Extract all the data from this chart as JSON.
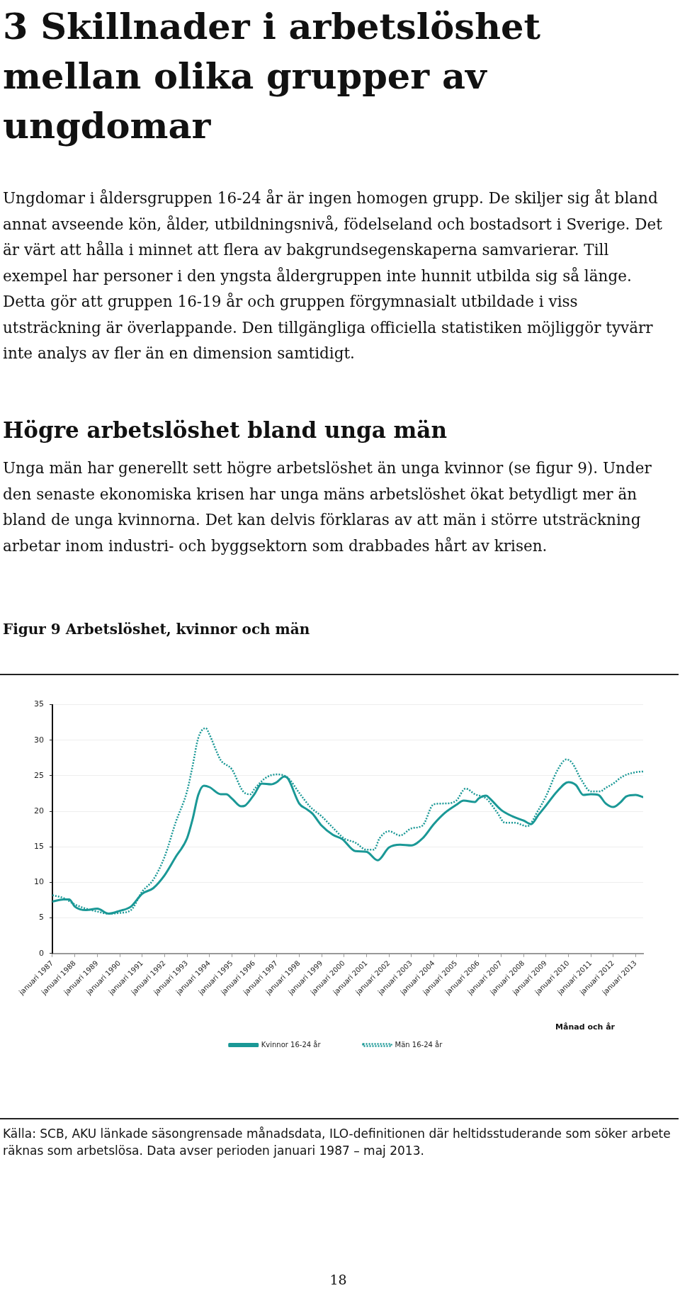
{
  "chart_data": {
    "type": "line",
    "title": "Figur 9 Arbetslöshet, kvinnor och män",
    "xlabel": "Månad och år",
    "annotations": [
      "3 Skillnader i arbetslöshet mellan olika grupper av ungdomar",
      "Ungdomar i åldersgruppen 16-24 år är ingen homogen grupp. De skiljer sig åt bland annat avseende kön, ålder, utbildningsnivå, födelseland och bostadsort i Sverige. Det är värt att hålla i minnet att flera av bakgrundsegenskaperna samvarierar. Till exempel har personer i den yngsta åldergruppen inte hunnit utbilda sig så länge. Detta gör att gruppen 16-19 år och gruppen förgymnasialt utbildade i viss utsträckning är överlappande. Den tillgängliga officiella statistiken möjliggör tyvärr inte analys av fler än en dimension samtidigt.",
      "Högre arbetslöshet bland unga män",
      "Unga män har generellt sett högre arbetslöshet än unga kvinnor (se figur 9). Under den senaste ekonomiska krisen har unga mäns arbetslöshet ökat betydligt mer än bland de unga kvinnorna. Det kan delvis förklaras av att män i större utsträckning arbetar inom industri- och byggsektorn som drabbades hårt av krisen.",
      "Källa: SCB, AKU länkade säsongrensade månadsdata, ILO-definitionen där heltidsstuderande som söker arbete räknas som arbetslösa. Data avser perioden januari 1987 – maj 2013.",
      "18"
    ],
    "series": [
      {
        "name": "Kvinnor 16-24 år",
        "color": "#1a9896",
        "line_style": "solid",
        "x": [
          "1987-01",
          "1987-07",
          "1987-10",
          "1988-01",
          "1988-07",
          "1989-01",
          "1989-07",
          "1990-01",
          "1990-07",
          "1991-01",
          "1991-07",
          "1992-01",
          "1992-07",
          "1993-01",
          "1993-04",
          "1993-07",
          "1993-10",
          "1994-01",
          "1994-07",
          "1994-10",
          "1995-01",
          "1995-06",
          "1995-08",
          "1996-01",
          "1996-05",
          "1996-10",
          "1997-01",
          "1997-05",
          "1997-07",
          "1998-01",
          "1998-05",
          "1998-08",
          "1999-01",
          "1999-07",
          "1999-12",
          "2000-07",
          "2001-01",
          "2001-07",
          "2002-01",
          "2002-07",
          "2003-01",
          "2003-07",
          "2004-01",
          "2004-07",
          "2005-01",
          "2005-05",
          "2005-11",
          "2006-01",
          "2006-05",
          "2006-07",
          "2007-01",
          "2007-07",
          "2008-01",
          "2008-05",
          "2008-09",
          "2009-01",
          "2009-07",
          "2010-01",
          "2010-05",
          "2010-09",
          "2011-01",
          "2011-05",
          "2011-09",
          "2012-01",
          "2012-05",
          "2012-08",
          "2013-01",
          "2013-05"
        ],
        "values": [
          7.3,
          7.6,
          7.6,
          6.6,
          6.1,
          6.3,
          5.6,
          6.0,
          6.6,
          8.4,
          9.2,
          11.0,
          13.6,
          16.2,
          18.9,
          22.3,
          23.6,
          23.4,
          22.4,
          22.4,
          21.8,
          20.7,
          20.8,
          22.4,
          23.9,
          23.8,
          24.1,
          24.9,
          24.6,
          21.1,
          20.3,
          19.7,
          18.0,
          16.7,
          16.1,
          14.4,
          14.3,
          13.1,
          14.9,
          15.3,
          15.2,
          16.2,
          18.2,
          19.8,
          20.9,
          21.5,
          21.3,
          21.8,
          22.2,
          21.8,
          20.2,
          19.3,
          18.7,
          18.2,
          19.5,
          20.8,
          22.8,
          24.1,
          23.7,
          22.3,
          22.4,
          22.3,
          21.1,
          20.6,
          21.3,
          22.1,
          22.3,
          22.0
        ]
      },
      {
        "name": "Män 16-24 år",
        "color": "#1a9896",
        "line_style": "dotted",
        "x": [
          "1987-01",
          "1987-07",
          "1988-01",
          "1988-07",
          "1989-01",
          "1989-07",
          "1990-01",
          "1990-07",
          "1991-01",
          "1991-07",
          "1992-01",
          "1992-07",
          "1993-01",
          "1993-04",
          "1993-07",
          "1993-11",
          "1994-01",
          "1994-05",
          "1994-07",
          "1995-01",
          "1995-07",
          "1995-11",
          "1996-01",
          "1996-07",
          "1997-01",
          "1997-07",
          "1998-01",
          "1998-07",
          "1999-01",
          "1999-07",
          "2000-01",
          "2000-07",
          "2001-01",
          "2001-05",
          "2001-08",
          "2002-01",
          "2002-07",
          "2003-01",
          "2003-07",
          "2004-01",
          "2004-07",
          "2005-01",
          "2005-06",
          "2005-11",
          "2006-05",
          "2006-11",
          "2007-03",
          "2007-08",
          "2008-03",
          "2008-09",
          "2009-01",
          "2009-07",
          "2009-12",
          "2010-03",
          "2010-08",
          "2011-01",
          "2011-06",
          "2011-09",
          "2012-01",
          "2012-06",
          "2013-01",
          "2013-05"
        ],
        "values": [
          8.2,
          7.8,
          6.9,
          6.3,
          5.9,
          5.6,
          5.7,
          6.1,
          8.7,
          10.4,
          13.6,
          18.5,
          22.8,
          26.4,
          30.3,
          31.7,
          30.8,
          28.3,
          27.2,
          25.9,
          22.8,
          22.4,
          23.1,
          24.7,
          25.2,
          24.7,
          22.6,
          20.6,
          19.3,
          17.7,
          16.2,
          15.6,
          14.6,
          14.6,
          16.2,
          17.2,
          16.6,
          17.6,
          18.0,
          21.0,
          21.1,
          21.5,
          23.2,
          22.4,
          21.8,
          19.8,
          18.4,
          18.4,
          17.9,
          20.2,
          22.1,
          25.7,
          27.3,
          26.8,
          24.4,
          22.8,
          22.8,
          23.3,
          23.9,
          24.9,
          25.5,
          25.6
        ]
      }
    ],
    "xlim": [
      "1987-01",
      "2013-05"
    ],
    "xticks": [
      {
        "value": "1987-01",
        "label": "januari 1987"
      },
      {
        "value": "1988-01",
        "label": "januari 1988"
      },
      {
        "value": "1989-01",
        "label": "januari 1989"
      },
      {
        "value": "1990-01",
        "label": "januari 1990"
      },
      {
        "value": "1991-01",
        "label": "januari 1991"
      },
      {
        "value": "1992-01",
        "label": "januari 1992"
      },
      {
        "value": "1993-01",
        "label": "januari 1993"
      },
      {
        "value": "1994-01",
        "label": "januari 1994"
      },
      {
        "value": "1995-01",
        "label": "januari 1995"
      },
      {
        "value": "1996-01",
        "label": "januari 1996"
      },
      {
        "value": "1997-01",
        "label": "januari 1997"
      },
      {
        "value": "1998-01",
        "label": "januari 1998"
      },
      {
        "value": "1999-01",
        "label": "januari 1999"
      },
      {
        "value": "2000-01",
        "label": "januari 2000"
      },
      {
        "value": "2001-01",
        "label": "januari 2001"
      },
      {
        "value": "2002-01",
        "label": "januari 2002"
      },
      {
        "value": "2003-01",
        "label": "januari 2003"
      },
      {
        "value": "2004-01",
        "label": "januari 2004"
      },
      {
        "value": "2005-01",
        "label": "januari 2005"
      },
      {
        "value": "2006-01",
        "label": "januari 2006"
      },
      {
        "value": "2007-01",
        "label": "januari 2007"
      },
      {
        "value": "2008-01",
        "label": "januari 2008"
      },
      {
        "value": "2009-01",
        "label": "januari 2009"
      },
      {
        "value": "2010-01",
        "label": "januari 2010"
      },
      {
        "value": "2011-01",
        "label": "januari 2011"
      },
      {
        "value": "2012-01",
        "label": "januari 2012"
      },
      {
        "value": "2013-01",
        "label": "januari 2013"
      }
    ],
    "ylim": [
      0,
      35
    ],
    "yticks": [
      0,
      5,
      10,
      15,
      20,
      25,
      30,
      35
    ],
    "grid": "y",
    "legend": "bottom",
    "marker": "none"
  }
}
